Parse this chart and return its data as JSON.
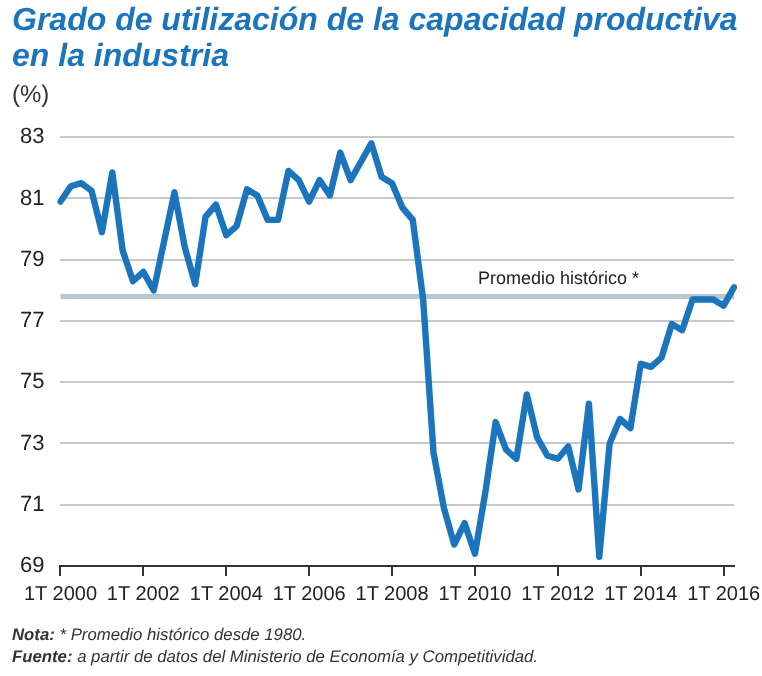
{
  "chart_data": {
    "type": "line",
    "title": "Grado de utilización de la capacidad productiva en la industria",
    "ylabel": "(%)",
    "categories": [
      "1T 2000",
      null,
      null,
      null,
      null,
      null,
      null,
      null,
      "1T 2002",
      null,
      null,
      null,
      null,
      null,
      null,
      null,
      "1T 2004",
      null,
      null,
      null,
      null,
      null,
      null,
      null,
      "1T 2006",
      null,
      null,
      null,
      null,
      null,
      null,
      null,
      "1T 2008",
      null,
      null,
      null,
      null,
      null,
      null,
      null,
      "1T 2010",
      null,
      null,
      null,
      null,
      null,
      null,
      null,
      "1T 2012",
      null,
      null,
      null,
      null,
      null,
      null,
      null,
      "1T 2014",
      null,
      null,
      null,
      null,
      null,
      null,
      null,
      "1T 2016",
      null
    ],
    "series": [
      {
        "color": "#1b75bc",
        "values": [
          80.9,
          81.4,
          81.5,
          81.25,
          79.9,
          81.85,
          79.3,
          78.3,
          78.6,
          78.0,
          79.6,
          81.2,
          79.4,
          78.2,
          80.4,
          80.8,
          79.8,
          80.1,
          81.3,
          81.1,
          80.3,
          80.3,
          81.9,
          81.6,
          80.9,
          81.6,
          81.1,
          82.5,
          81.6,
          82.2,
          82.8,
          81.7,
          81.5,
          80.7,
          80.3,
          77.7,
          72.7,
          70.9,
          69.7,
          70.4,
          69.4,
          71.4,
          73.7,
          72.8,
          72.5,
          74.6,
          73.2,
          72.6,
          72.5,
          72.9,
          71.5,
          74.3,
          69.3,
          73.0,
          73.8,
          73.5,
          75.6,
          75.5,
          75.8,
          76.9,
          76.7,
          77.7,
          77.7,
          77.7,
          77.5,
          78.1
        ]
      }
    ],
    "ylim": [
      69,
      83
    ],
    "yticks": [
      69,
      71,
      73,
      75,
      77,
      79,
      81,
      83
    ],
    "grid": "y",
    "marker": "none",
    "line_style": "solid",
    "ref_lines": [
      {
        "axis": "y",
        "value": 77.8,
        "label": "Promedio histórico *",
        "color": "#b9c6ce"
      }
    ],
    "annotations": [
      "Nota: * Promedio histórico desde 1980.",
      "Fuente: a partir de datos del Ministerio de Economía y Competitividad."
    ]
  }
}
